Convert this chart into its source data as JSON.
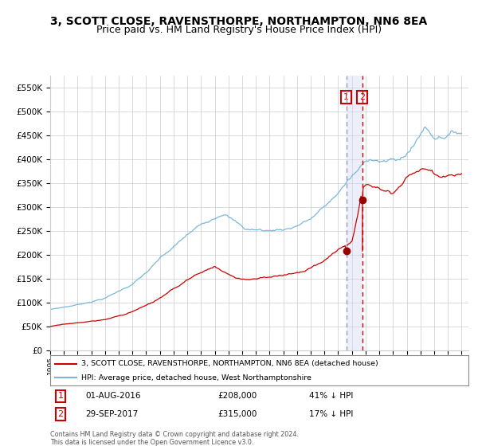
{
  "title": "3, SCOTT CLOSE, RAVENSTHORPE, NORTHAMPTON, NN6 8EA",
  "subtitle": "Price paid vs. HM Land Registry's House Price Index (HPI)",
  "hpi_label": "HPI: Average price, detached house, West Northamptonshire",
  "property_label": "3, SCOTT CLOSE, RAVENSTHORPE, NORTHAMPTON, NN6 8EA (detached house)",
  "footer": "Contains HM Land Registry data © Crown copyright and database right 2024.\nThis data is licensed under the Open Government Licence v3.0.",
  "point1_date": 2016.583,
  "point1_value": 208000,
  "point2_date": 2017.747,
  "point2_value": 315000,
  "hpi_color": "#7ab8d9",
  "property_color": "#cc0000",
  "point_color": "#990000",
  "vline1_color": "#aaaacc",
  "vline2_color": "#cc0000",
  "vspan_color": "#d0d8f0",
  "ylim": [
    0,
    575000
  ],
  "xlim_start": 1995.0,
  "xlim_end": 2025.5,
  "bg_color": "#ffffff",
  "grid_color": "#cccccc",
  "title_fontsize": 10,
  "subtitle_fontsize": 9
}
